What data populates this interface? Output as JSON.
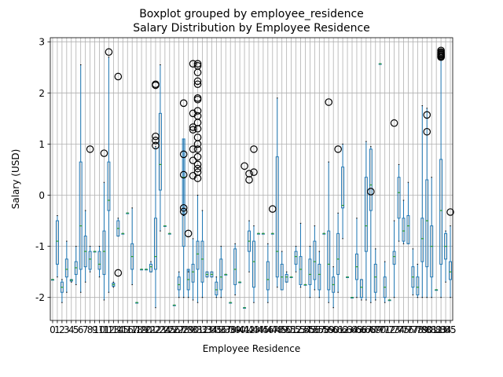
{
  "chart_data": {
    "type": "box",
    "title": "Boxplot grouped by employee_residence",
    "subtitle": "Salary Distribution by Employee Residence",
    "xlabel": "Employee Residence",
    "ylabel": "Salary (USD)",
    "ylim": [
      -2.45,
      3.08
    ],
    "yticks": [
      -2,
      -1,
      0,
      1,
      2,
      3
    ],
    "grid": true,
    "colors": {
      "box": "#1f77b4",
      "median": "#2ca02c",
      "grid": "#b0b0b0",
      "flier": "#000000"
    },
    "category_labels": [
      "0",
      "1",
      "2",
      "3",
      "4",
      "5",
      "6",
      "7",
      "8",
      "9",
      "10",
      "11",
      "12",
      "13",
      "14",
      "15",
      "16",
      "17",
      "18",
      "19",
      "20",
      "21",
      "22",
      "23",
      "24",
      "25",
      "26",
      "27",
      "28",
      "29",
      "30",
      "31",
      "32",
      "33",
      "34",
      "35",
      "36",
      "37",
      "38",
      "39",
      "40",
      "41",
      "42",
      "43",
      "44",
      "45",
      "46",
      "47",
      "48",
      "49",
      "50",
      "51",
      "52",
      "53",
      "54",
      "55",
      "56",
      "57",
      "58",
      "59",
      "60",
      "61",
      "62",
      "63",
      "64",
      "65",
      "66",
      "67",
      "68",
      "69",
      "70",
      "71",
      "72",
      "73",
      "74",
      "75",
      "76",
      "77",
      "78",
      "79",
      "80",
      "81",
      "82",
      "83",
      "84",
      "85"
    ],
    "boxes": [
      {
        "w": [
          -1.65,
          -1.65
        ],
        "q": [
          -1.65,
          -1.65
        ],
        "m": -1.65
      },
      {
        "w": [
          -1.6,
          -0.4
        ],
        "q": [
          -1.35,
          -0.5
        ],
        "m": -0.9
      },
      {
        "w": [
          -2.1,
          -1.65
        ],
        "q": [
          -1.9,
          -1.7
        ],
        "m": -1.8
      },
      {
        "w": [
          -1.9,
          -0.9
        ],
        "q": [
          -1.6,
          -1.25
        ],
        "m": -1.45
      },
      {
        "w": [
          -1.7,
          -1.65
        ],
        "q": [
          -1.68,
          -1.65
        ],
        "m": -1.66
      },
      {
        "w": [
          -1.75,
          -1.0
        ],
        "q": [
          -1.55,
          -1.3
        ],
        "m": -1.42
      },
      {
        "w": [
          -1.9,
          2.55
        ],
        "q": [
          -1.45,
          0.65
        ],
        "m": -0.6
      },
      {
        "w": [
          -1.7,
          -0.3
        ],
        "q": [
          -1.4,
          -0.8
        ],
        "m": -1.1
      },
      {
        "w": [
          -1.5,
          -1.0
        ],
        "q": [
          -1.45,
          -1.1
        ],
        "m": -1.25
      },
      {
        "w": [
          -1.1,
          -1.1
        ],
        "q": [
          -1.1,
          -1.1
        ],
        "m": -1.1
      },
      {
        "w": [
          -1.6,
          -1.0
        ],
        "q": [
          -1.45,
          -1.1
        ],
        "m": -1.35
      },
      {
        "w": [
          -2.05,
          0.25
        ],
        "q": [
          -1.55,
          -0.7
        ],
        "m": -1.1
      },
      {
        "w": [
          -1.9,
          2.7
        ],
        "q": [
          -0.3,
          0.65
        ],
        "m": -0.1
      },
      {
        "w": [
          -1.8,
          -1.7
        ],
        "q": [
          -1.78,
          -1.72
        ],
        "m": -1.75
      },
      {
        "w": [
          -0.8,
          -0.45
        ],
        "q": [
          -0.8,
          -0.5
        ],
        "m": -0.65
      },
      {
        "w": [
          -0.75,
          -0.75
        ],
        "q": [
          -0.75,
          -0.75
        ],
        "m": -0.75
      },
      {
        "w": [
          -0.35,
          -0.35
        ],
        "q": [
          -0.35,
          -0.35
        ],
        "m": -0.35
      },
      {
        "w": [
          -1.75,
          -0.25
        ],
        "q": [
          -1.45,
          -0.95
        ],
        "m": -1.2
      },
      {
        "w": [
          -2.1,
          -2.1
        ],
        "q": [
          -2.1,
          -2.1
        ],
        "m": -2.1
      },
      {
        "w": [
          -1.45,
          -1.45
        ],
        "q": [
          -1.45,
          -1.45
        ],
        "m": -1.45
      },
      {
        "w": [
          -1.45,
          -1.45
        ],
        "q": [
          -1.45,
          -1.45
        ],
        "m": -1.45
      },
      {
        "w": [
          -1.5,
          -1.3
        ],
        "q": [
          -1.5,
          -1.35
        ],
        "m": -1.4
      },
      {
        "w": [
          -2.2,
          0.95
        ],
        "q": [
          -1.45,
          -0.45
        ],
        "m": -1.2
      },
      {
        "w": [
          -0.7,
          2.55
        ],
        "q": [
          0.1,
          1.6
        ],
        "m": 0.6
      },
      {
        "w": [
          -0.6,
          -0.6
        ],
        "q": [
          -0.6,
          -0.6
        ],
        "m": -0.6
      },
      {
        "w": [
          -0.75,
          -0.75
        ],
        "q": [
          -0.75,
          -0.75
        ],
        "m": -0.75
      },
      {
        "w": [
          -2.15,
          -2.15
        ],
        "q": [
          -2.15,
          -2.15
        ],
        "m": -2.15
      },
      {
        "w": [
          -2.0,
          -1.5
        ],
        "q": [
          -1.85,
          -1.6
        ],
        "m": -1.75
      },
      {
        "w": [
          -2.0,
          -0.4
        ],
        "q": [
          -1.0,
          1.1
        ],
        "m": 0.35
      },
      {
        "w": [
          -2.0,
          -1.5
        ],
        "q": [
          -1.85,
          -1.45
        ],
        "m": -1.65
      },
      {
        "w": [
          -2.05,
          -0.85
        ],
        "q": [
          -1.7,
          -1.35
        ],
        "m": -1.5
      },
      {
        "w": [
          -2.1,
          0.0
        ],
        "q": [
          -1.45,
          -0.9
        ],
        "m": -1.15
      },
      {
        "w": [
          -2.0,
          -0.3
        ],
        "q": [
          -1.7,
          -0.9
        ],
        "m": -1.25
      },
      {
        "w": [
          -1.6,
          -1.5
        ],
        "q": [
          -1.6,
          -1.5
        ],
        "m": -1.55
      },
      {
        "w": [
          -1.6,
          -1.5
        ],
        "q": [
          -1.6,
          -1.5
        ],
        "m": -1.55
      },
      {
        "w": [
          -2.0,
          -1.6
        ],
        "q": [
          -1.95,
          -1.7
        ],
        "m": -1.85
      },
      {
        "w": [
          -2.0,
          -1.0
        ],
        "q": [
          -1.85,
          -1.25
        ],
        "m": -1.6
      },
      {
        "w": [
          -1.55,
          -1.55
        ],
        "q": [
          -1.55,
          -1.55
        ],
        "m": -1.55
      },
      {
        "w": [
          -2.1,
          -2.1
        ],
        "q": [
          -2.1,
          -2.1
        ],
        "m": -2.1
      },
      {
        "w": [
          -1.95,
          -0.95
        ],
        "q": [
          -1.75,
          -1.05
        ],
        "m": -1.45
      },
      {
        "w": [
          -1.7,
          -1.7
        ],
        "q": [
          -1.7,
          -1.7
        ],
        "m": -1.7
      },
      {
        "w": [
          -2.2,
          -2.2
        ],
        "q": [
          -2.2,
          -2.2
        ],
        "m": -2.2
      },
      {
        "w": [
          -1.5,
          -0.5
        ],
        "q": [
          -1.1,
          -0.7
        ],
        "m": -0.9
      },
      {
        "w": [
          -2.1,
          -0.6
        ],
        "q": [
          -1.8,
          -0.9
        ],
        "m": -1.3
      },
      {
        "w": [
          -0.75,
          -0.75
        ],
        "q": [
          -0.75,
          -0.75
        ],
        "m": -0.75
      },
      {
        "w": [
          -0.75,
          -0.75
        ],
        "q": [
          -0.75,
          -0.75
        ],
        "m": -0.75
      },
      {
        "w": [
          -2.1,
          -0.95
        ],
        "q": [
          -1.85,
          -1.3
        ],
        "m": -1.65
      },
      {
        "w": [
          -0.75,
          -0.75
        ],
        "q": [
          -0.75,
          -0.75
        ],
        "m": -0.75
      },
      {
        "w": [
          -1.8,
          1.9
        ],
        "q": [
          -1.6,
          0.75
        ],
        "m": -1.1
      },
      {
        "w": [
          -1.85,
          -1.1
        ],
        "q": [
          -1.85,
          -1.35
        ],
        "m": -1.6
      },
      {
        "w": [
          -1.7,
          -1.5
        ],
        "q": [
          -1.7,
          -1.55
        ],
        "m": -1.6
      },
      {
        "w": [
          -1.6,
          -1.6
        ],
        "q": [
          -1.6,
          -1.6
        ],
        "m": -1.6
      },
      {
        "w": [
          -1.5,
          -1.0
        ],
        "q": [
          -1.35,
          -1.1
        ],
        "m": -1.2
      },
      {
        "w": [
          -1.8,
          -0.55
        ],
        "q": [
          -1.75,
          -1.2
        ],
        "m": -1.45
      },
      {
        "w": [
          -1.75,
          -1.75
        ],
        "q": [
          -1.75,
          -1.75
        ],
        "m": -1.75
      },
      {
        "w": [
          -2.0,
          -1.0
        ],
        "q": [
          -1.75,
          -1.25
        ],
        "m": -1.55
      },
      {
        "w": [
          -1.85,
          -0.6
        ],
        "q": [
          -1.65,
          -0.9
        ],
        "m": -1.3
      },
      {
        "w": [
          -2.0,
          -1.1
        ],
        "q": [
          -1.85,
          -1.35
        ],
        "m": -1.55
      },
      {
        "w": [
          -0.75,
          -0.75
        ],
        "q": [
          -0.75,
          -0.75
        ],
        "m": -0.75
      },
      {
        "w": [
          -2.1,
          0.65
        ],
        "q": [
          -1.85,
          -0.7
        ],
        "m": -1.35
      },
      {
        "w": [
          -2.2,
          -1.4
        ],
        "q": [
          -1.9,
          -1.6
        ],
        "m": -1.75
      },
      {
        "w": [
          -1.9,
          -0.35
        ],
        "q": [
          -1.55,
          -0.75
        ],
        "m": -1.25
      },
      {
        "w": [
          -0.85,
          1.0
        ],
        "q": [
          -0.25,
          0.55
        ],
        "m": -0.2
      },
      {
        "w": [
          -1.6,
          -1.6
        ],
        "q": [
          -1.6,
          -1.6
        ],
        "m": -1.6
      },
      {
        "w": [
          -2.0,
          -2.0
        ],
        "q": [
          -2.0,
          -2.0
        ],
        "m": -2.0
      },
      {
        "w": [
          -2.0,
          -0.45
        ],
        "q": [
          -1.65,
          -1.15
        ],
        "m": -1.4
      },
      {
        "w": [
          -2.05,
          -1.65
        ],
        "q": [
          -2.0,
          -1.65
        ],
        "m": -1.8
      },
      {
        "w": [
          -2.05,
          1.05
        ],
        "q": [
          -1.1,
          0.35
        ],
        "m": -0.6
      },
      {
        "w": [
          -2.1,
          0.95
        ],
        "q": [
          -0.3,
          0.9
        ],
        "m": 0.2
      },
      {
        "w": [
          -2.05,
          -1.05
        ],
        "q": [
          -1.9,
          -1.35
        ],
        "m": -1.6
      },
      {
        "w": [
          2.57,
          2.57
        ],
        "q": [
          2.57,
          2.57
        ],
        "m": 2.57
      },
      {
        "w": [
          -2.1,
          -1.3
        ],
        "q": [
          -2.0,
          -1.6
        ],
        "m": -1.8
      },
      {
        "w": [
          -2.05,
          -2.05
        ],
        "q": [
          -2.05,
          -2.05
        ],
        "m": -2.05
      },
      {
        "w": [
          -2.0,
          -0.5
        ],
        "q": [
          -1.35,
          -1.1
        ],
        "m": -1.2
      },
      {
        "w": [
          -0.9,
          0.6
        ],
        "q": [
          -0.45,
          0.35
        ],
        "m": 0.05
      },
      {
        "w": [
          -0.95,
          -0.1
        ],
        "q": [
          -0.9,
          -0.45
        ],
        "m": -0.7
      },
      {
        "w": [
          -0.95,
          0.25
        ],
        "q": [
          -0.95,
          -0.4
        ],
        "m": -0.6
      },
      {
        "w": [
          -1.95,
          -1.05
        ],
        "q": [
          -1.8,
          -1.4
        ],
        "m": -1.6
      },
      {
        "w": [
          -2.0,
          -1.35
        ],
        "q": [
          -1.95,
          -1.6
        ],
        "m": -1.8
      },
      {
        "w": [
          -2.0,
          1.75
        ],
        "q": [
          -1.3,
          -0.45
        ],
        "m": -0.85
      },
      {
        "w": [
          -2.0,
          1.7
        ],
        "q": [
          -1.4,
          0.3
        ],
        "m": -0.5
      },
      {
        "w": [
          -2.0,
          0.35
        ],
        "q": [
          -1.6,
          -0.6
        ],
        "m": -1.0
      },
      {
        "w": [
          -1.85,
          -1.85
        ],
        "q": [
          -1.85,
          -1.85
        ],
        "m": -1.85
      },
      {
        "w": [
          -2.0,
          2.65
        ],
        "q": [
          -1.35,
          0.7
        ],
        "m": -0.3
      },
      {
        "w": [
          -1.7,
          -0.7
        ],
        "q": [
          -1.25,
          -0.75
        ],
        "m": -1.0
      },
      {
        "w": [
          -2.0,
          -0.6
        ],
        "q": [
          -1.65,
          -1.3
        ],
        "m": -1.5
      }
    ],
    "fliers": [
      {
        "i": 8,
        "y": 0.9
      },
      {
        "i": 11,
        "y": 0.82
      },
      {
        "i": 12,
        "y": 2.8
      },
      {
        "i": 14,
        "y": 2.32
      },
      {
        "i": 14,
        "y": -1.52
      },
      {
        "i": 22,
        "y": 2.17
      },
      {
        "i": 22,
        "y": 2.15
      },
      {
        "i": 22,
        "y": 1.15
      },
      {
        "i": 22,
        "y": 1.07
      },
      {
        "i": 22,
        "y": 0.97
      },
      {
        "i": 28,
        "y": 1.8
      },
      {
        "i": 28,
        "y": 0.8
      },
      {
        "i": 28,
        "y": 0.4
      },
      {
        "i": 28,
        "y": -0.25
      },
      {
        "i": 28,
        "y": -0.32
      },
      {
        "i": 29,
        "y": -0.75
      },
      {
        "i": 30,
        "y": 2.57
      },
      {
        "i": 30,
        "y": 1.6
      },
      {
        "i": 30,
        "y": 1.33
      },
      {
        "i": 30,
        "y": 1.28
      },
      {
        "i": 30,
        "y": 0.9
      },
      {
        "i": 30,
        "y": 0.68
      },
      {
        "i": 30,
        "y": 0.38
      },
      {
        "i": 31,
        "y": 2.57
      },
      {
        "i": 31,
        "y": 2.53
      },
      {
        "i": 31,
        "y": 2.4
      },
      {
        "i": 31,
        "y": 2.23
      },
      {
        "i": 31,
        "y": 2.17
      },
      {
        "i": 31,
        "y": 1.9
      },
      {
        "i": 31,
        "y": 1.87
      },
      {
        "i": 31,
        "y": 1.65
      },
      {
        "i": 31,
        "y": 1.55
      },
      {
        "i": 31,
        "y": 1.42
      },
      {
        "i": 31,
        "y": 1.3
      },
      {
        "i": 31,
        "y": 1.13
      },
      {
        "i": 31,
        "y": 1.0
      },
      {
        "i": 31,
        "y": 0.9
      },
      {
        "i": 31,
        "y": 0.75
      },
      {
        "i": 31,
        "y": 0.6
      },
      {
        "i": 31,
        "y": 0.52
      },
      {
        "i": 31,
        "y": 0.45
      },
      {
        "i": 31,
        "y": 0.33
      },
      {
        "i": 41,
        "y": 0.57
      },
      {
        "i": 42,
        "y": 0.42
      },
      {
        "i": 42,
        "y": 0.3
      },
      {
        "i": 43,
        "y": 0.9
      },
      {
        "i": 43,
        "y": 0.45
      },
      {
        "i": 47,
        "y": -0.27
      },
      {
        "i": 59,
        "y": 1.82
      },
      {
        "i": 61,
        "y": 0.9
      },
      {
        "i": 68,
        "y": 0.07
      },
      {
        "i": 73,
        "y": 1.41
      },
      {
        "i": 80,
        "y": 1.57
      },
      {
        "i": 80,
        "y": 1.24
      },
      {
        "i": 83,
        "y": 2.83
      },
      {
        "i": 83,
        "y": 2.8
      },
      {
        "i": 83,
        "y": 2.78
      },
      {
        "i": 83,
        "y": 2.76
      },
      {
        "i": 83,
        "y": 2.75
      },
      {
        "i": 83,
        "y": 2.73
      },
      {
        "i": 83,
        "y": 2.71
      },
      {
        "i": 83,
        "y": 2.7
      },
      {
        "i": 85,
        "y": -0.33
      }
    ]
  }
}
